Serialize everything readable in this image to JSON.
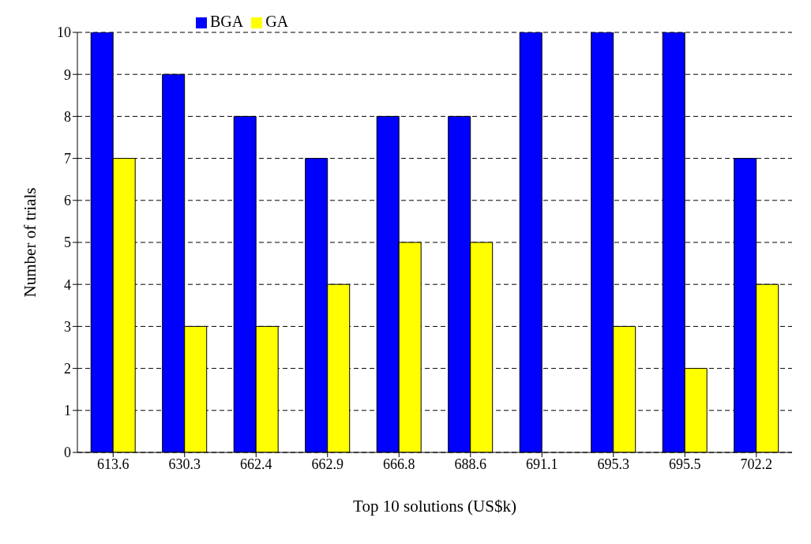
{
  "chart_data": {
    "type": "bar",
    "xlabel": "Top 10 solutions (US$k)",
    "ylabel": "Number of trials",
    "categories": [
      "613.6",
      "630.3",
      "662.4",
      "662.9",
      "666.8",
      "688.6",
      "691.1",
      "695.3",
      "695.5",
      "702.2"
    ],
    "series": [
      {
        "name": "BGA",
        "color": "#0000ff",
        "values": [
          10,
          9,
          8,
          7,
          8,
          8,
          10,
          10,
          10,
          7
        ]
      },
      {
        "name": "GA",
        "color": "#ffff00",
        "values": [
          7,
          3,
          3,
          4,
          5,
          5,
          0,
          3,
          2,
          4
        ]
      }
    ],
    "ylim": [
      0,
      10
    ],
    "yticks": [
      0,
      1,
      2,
      3,
      4,
      5,
      6,
      7,
      8,
      9,
      10
    ],
    "grid": "y",
    "legend": "top left"
  }
}
